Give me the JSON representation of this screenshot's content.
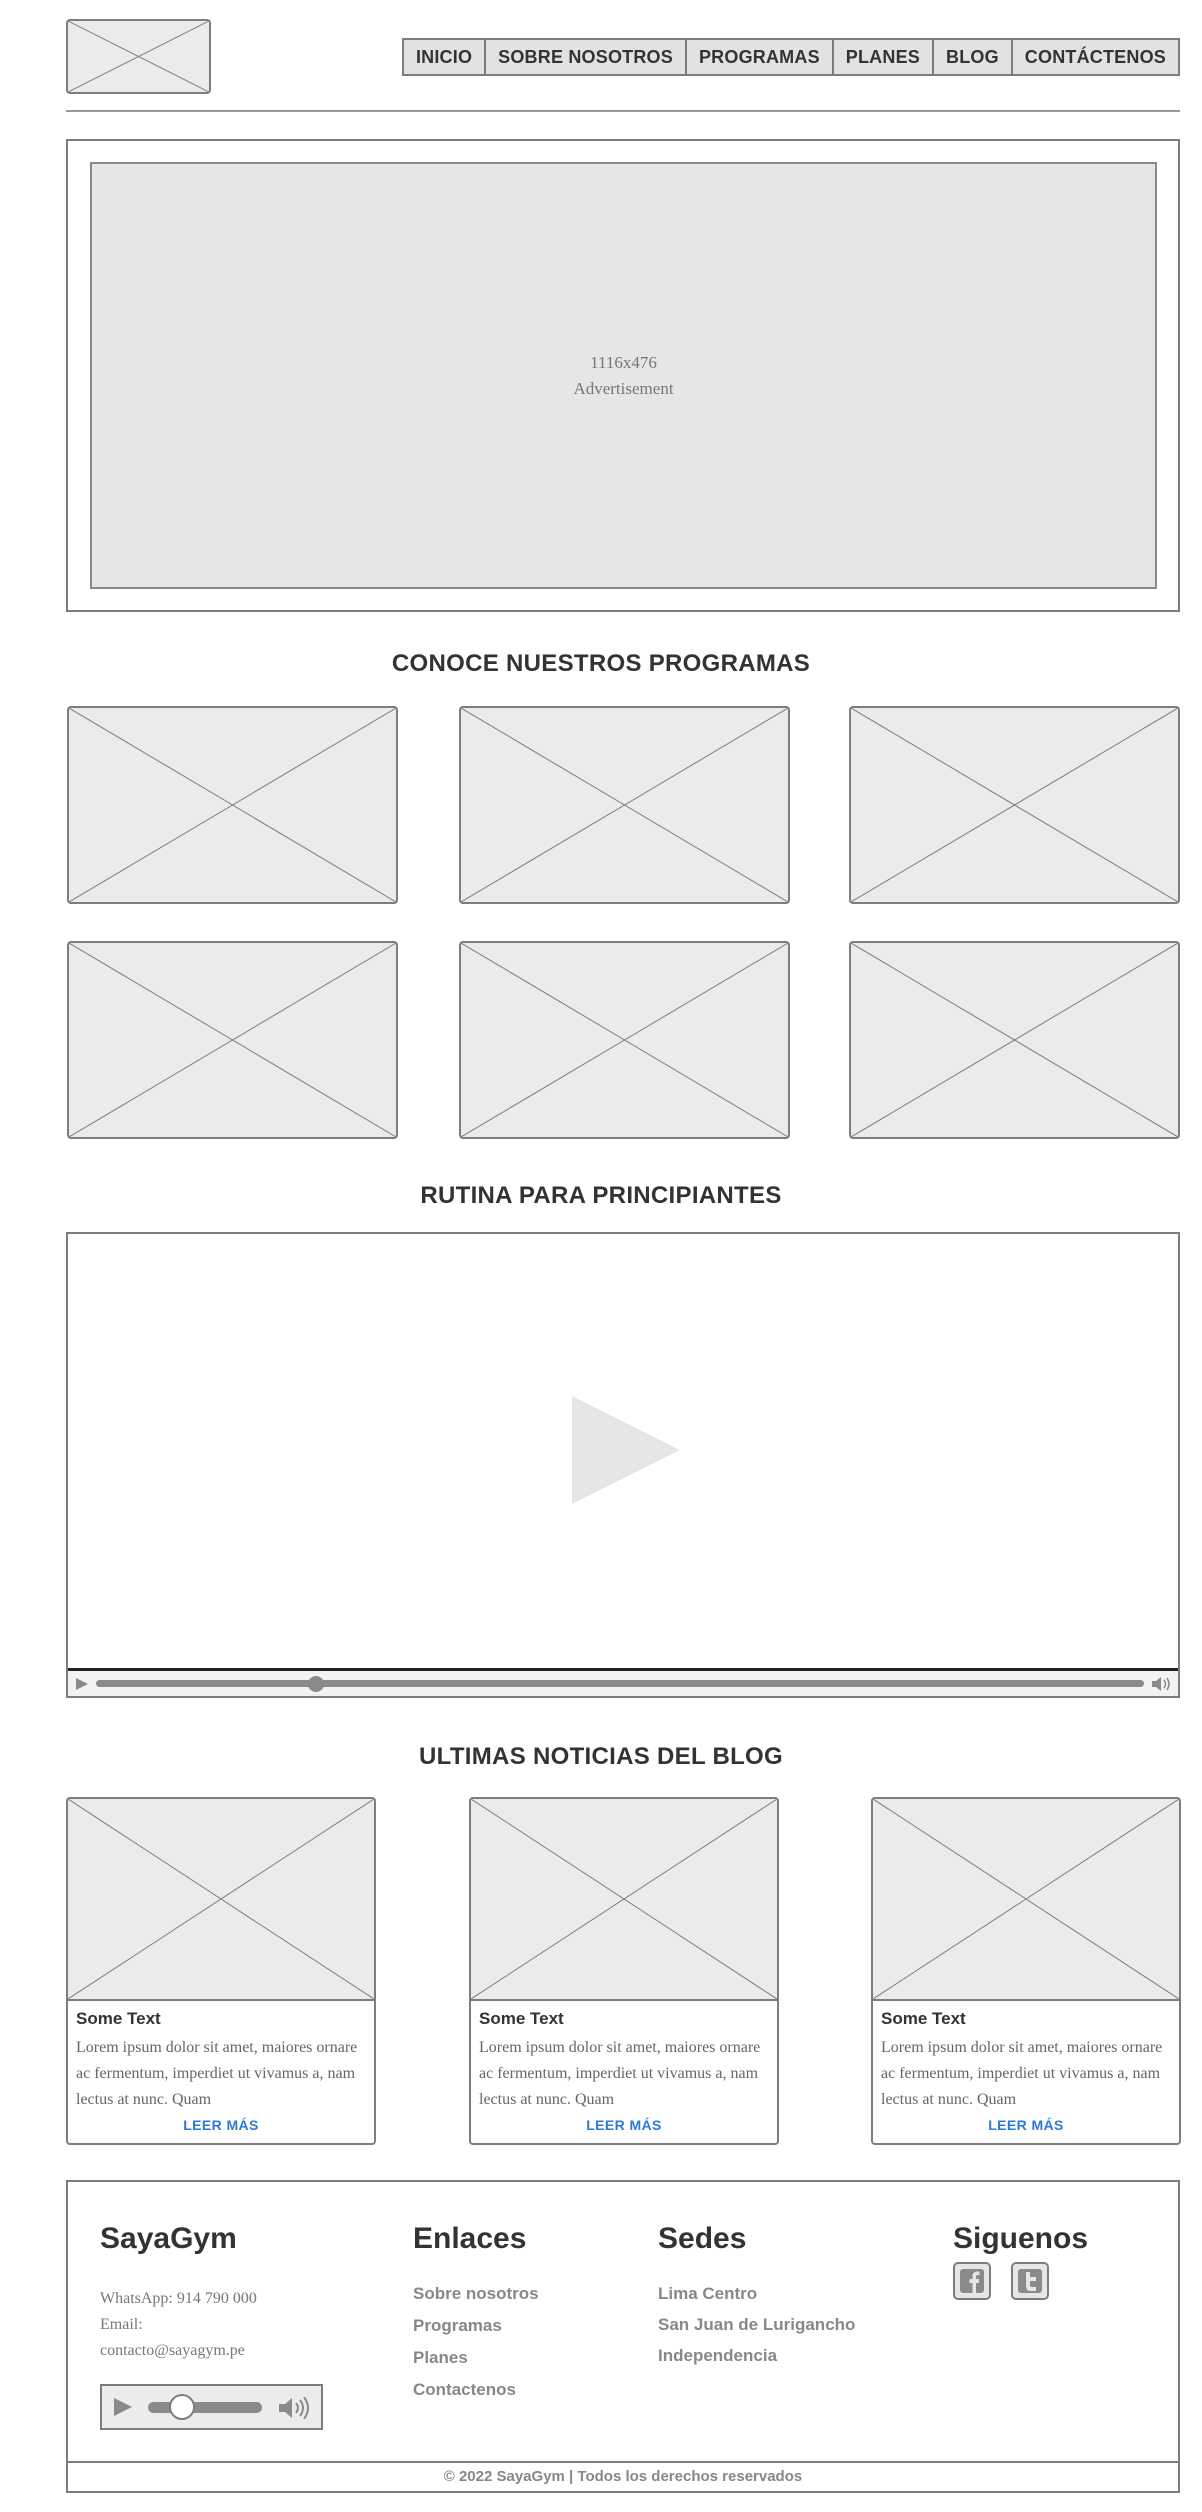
{
  "nav": {
    "items": [
      "INICIO",
      "SOBRE NOSOTROS",
      "PROGRAMAS",
      "PLANES",
      "BLOG",
      "CONTÁCTENOS"
    ]
  },
  "hero": {
    "size_label": "1116x476",
    "label": "Advertisement"
  },
  "programs": {
    "title": "CONOCE NUESTROS PROGRAMAS"
  },
  "routine": {
    "title": "RUTINA PARA PRINCIPIANTES",
    "progress": 0.21
  },
  "blog": {
    "title": "ULTIMAS NOTICIAS DEL BLOG",
    "cards": [
      {
        "title": "Some Text",
        "body": "Lorem ipsum dolor sit amet, maiores ornare ac fermentum, imperdiet ut vivamus a, nam lectus at nunc. Quam",
        "more": "LEER MÁS"
      },
      {
        "title": "Some Text",
        "body": "Lorem ipsum dolor sit amet, maiores ornare ac fermentum, imperdiet ut vivamus a, nam lectus at nunc. Quam",
        "more": "LEER MÁS"
      },
      {
        "title": "Some Text",
        "body": "Lorem ipsum dolor sit amet, maiores ornare ac fermentum, imperdiet ut vivamus a, nam lectus at nunc. Quam",
        "more": "LEER MÁS"
      }
    ]
  },
  "footer": {
    "brand": "SayaGym",
    "whatsapp": "WhatsApp: 914 790 000",
    "email_label": "Email:",
    "email": "contacto@sayagym.pe",
    "audio_volume": 0.3,
    "links_title": "Enlaces",
    "links": [
      "Sobre nosotros",
      "Programas",
      "Planes",
      "Contactenos"
    ],
    "sedes_title": "Sedes",
    "sedes": [
      "Lima Centro",
      "San Juan de Lurigancho",
      "Independencia"
    ],
    "social_title": "Siguenos",
    "social_icons": [
      "facebook-icon",
      "twitter-icon"
    ],
    "copyright": "© 2022 SayaGym | Todos los derechos reservados"
  },
  "colors": {
    "placeholder_fill": "#ebebeb",
    "border": "#7d7d7d",
    "link_blue": "#2a7bd6"
  }
}
